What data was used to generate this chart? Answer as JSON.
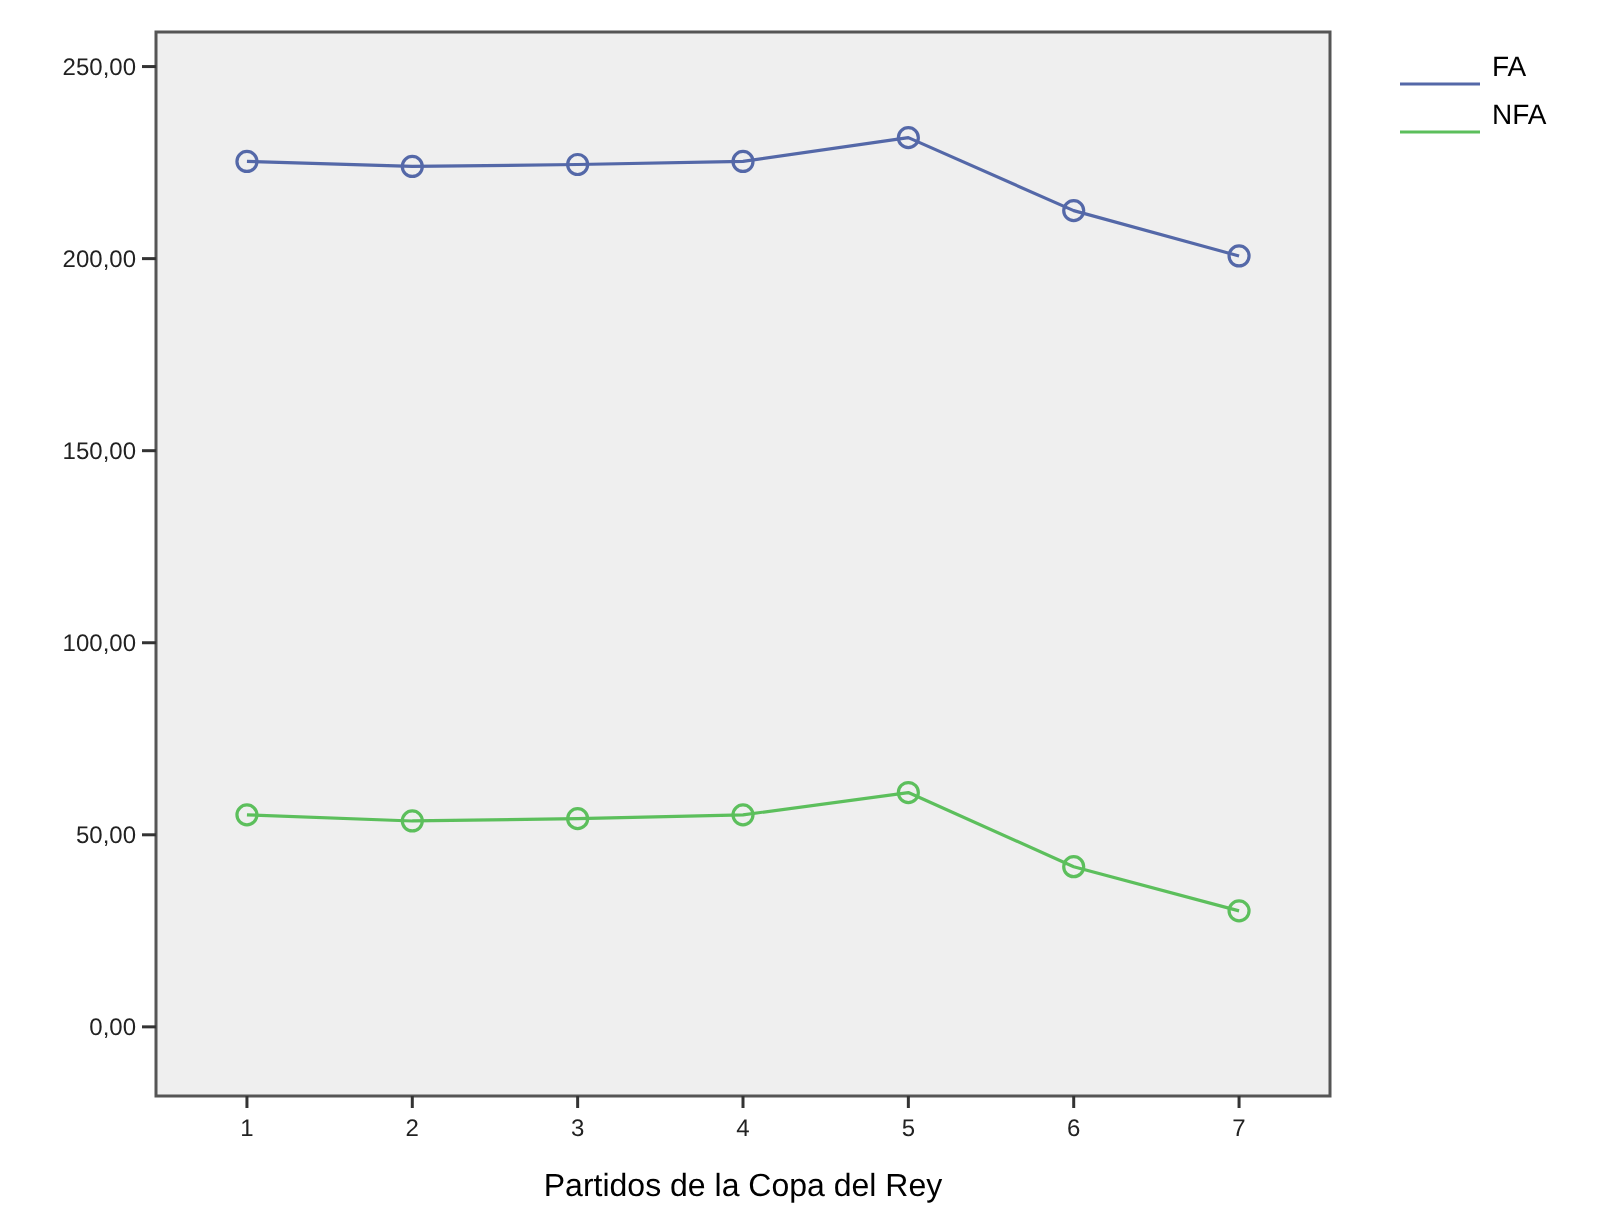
{
  "chart_data": {
    "type": "line",
    "xlabel": "Partidos de la Copa del Rey",
    "categories": [
      "1",
      "2",
      "3",
      "4",
      "5",
      "6",
      "7"
    ],
    "series": [
      {
        "name": "FA",
        "color": "#5468a8",
        "values": [
          225.3,
          224,
          224.5,
          225.3,
          231.5,
          212.5,
          200.7
        ]
      },
      {
        "name": "NFA",
        "color": "#5cbf5c",
        "values": [
          55.2,
          53.6,
          54.2,
          55.2,
          61,
          41.7,
          30.2
        ]
      }
    ],
    "ylim": [
      -18,
      259
    ],
    "yticks": [
      {
        "value": 0,
        "label": "0,00"
      },
      {
        "value": 50,
        "label": "50,00"
      },
      {
        "value": 100,
        "label": "100,00"
      },
      {
        "value": 150,
        "label": "150,00"
      },
      {
        "value": 200,
        "label": "200,00"
      },
      {
        "value": 250,
        "label": "250,00"
      }
    ],
    "marker": "circle",
    "line_style": "solid",
    "legend": "top right",
    "grid": false
  }
}
